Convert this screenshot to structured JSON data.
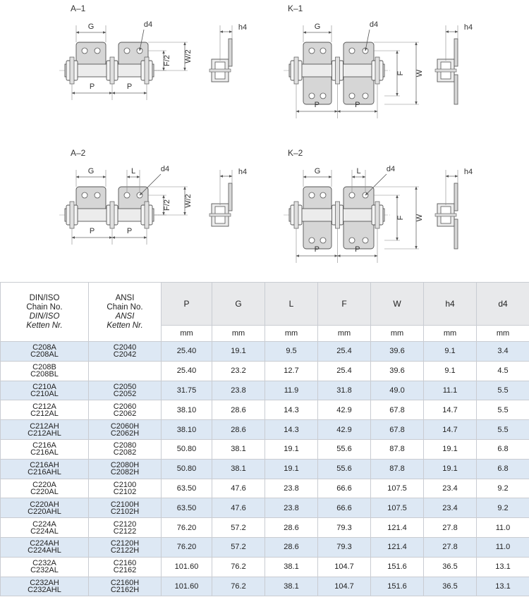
{
  "diagrams": [
    {
      "title": "A–1",
      "labels": [
        "G",
        "d4",
        "h4",
        "F/2",
        "W/2",
        "P",
        "P"
      ]
    },
    {
      "title": "K–1",
      "labels": [
        "G",
        "d4",
        "h4",
        "F",
        "W",
        "P",
        "P"
      ]
    },
    {
      "title": "A–2",
      "labels": [
        "G",
        "L",
        "d4",
        "h4",
        "F/2",
        "W/2",
        "P",
        "P"
      ]
    },
    {
      "title": "K–2",
      "labels": [
        "G",
        "L",
        "d4",
        "h4",
        "F",
        "W",
        "P",
        "P"
      ]
    }
  ],
  "table": {
    "header": {
      "din": {
        "lines": [
          "DIN/ISO",
          "Chain No."
        ],
        "italic_lines": [
          "DIN/ISO",
          "Ketten Nr."
        ]
      },
      "ansi": {
        "lines": [
          "ANSI",
          "Chain No."
        ],
        "italic_lines": [
          "ANSI",
          "Ketten Nr."
        ]
      },
      "dims": [
        "P",
        "G",
        "L",
        "F",
        "W",
        "h4",
        "d4"
      ],
      "units": [
        "mm",
        "mm",
        "mm",
        "mm",
        "mm",
        "mm",
        "mm"
      ]
    },
    "rows": [
      {
        "din": [
          "C208A",
          "C208AL"
        ],
        "ansi": [
          "C2040",
          "C2042"
        ],
        "values": [
          "25.40",
          "19.1",
          "9.5",
          "25.4",
          "39.6",
          "9.1",
          "3.4"
        ]
      },
      {
        "din": [
          "C208B",
          "C208BL"
        ],
        "ansi": [],
        "values": [
          "25.40",
          "23.2",
          "12.7",
          "25.4",
          "39.6",
          "9.1",
          "4.5"
        ]
      },
      {
        "din": [
          "C210A",
          "C210AL"
        ],
        "ansi": [
          "C2050",
          "C2052"
        ],
        "values": [
          "31.75",
          "23.8",
          "11.9",
          "31.8",
          "49.0",
          "11.1",
          "5.5"
        ]
      },
      {
        "din": [
          "C212A",
          "C212AL"
        ],
        "ansi": [
          "C2060",
          "C2062"
        ],
        "values": [
          "38.10",
          "28.6",
          "14.3",
          "42.9",
          "67.8",
          "14.7",
          "5.5"
        ]
      },
      {
        "din": [
          "C212AH",
          "C212AHL"
        ],
        "ansi": [
          "C2060H",
          "C2062H"
        ],
        "values": [
          "38.10",
          "28.6",
          "14.3",
          "42.9",
          "67.8",
          "14.7",
          "5.5"
        ]
      },
      {
        "din": [
          "C216A",
          "C216AL"
        ],
        "ansi": [
          "C2080",
          "C2082"
        ],
        "values": [
          "50.80",
          "38.1",
          "19.1",
          "55.6",
          "87.8",
          "19.1",
          "6.8"
        ]
      },
      {
        "din": [
          "C216AH",
          "C216AHL"
        ],
        "ansi": [
          "C2080H",
          "C2082H"
        ],
        "values": [
          "50.80",
          "38.1",
          "19.1",
          "55.6",
          "87.8",
          "19.1",
          "6.8"
        ]
      },
      {
        "din": [
          "C220A",
          "C220AL"
        ],
        "ansi": [
          "C2100",
          "C2102"
        ],
        "values": [
          "63.50",
          "47.6",
          "23.8",
          "66.6",
          "107.5",
          "23.4",
          "9.2"
        ]
      },
      {
        "din": [
          "C220AH",
          "C220AHL"
        ],
        "ansi": [
          "C2100H",
          "C2102H"
        ],
        "values": [
          "63.50",
          "47.6",
          "23.8",
          "66.6",
          "107.5",
          "23.4",
          "9.2"
        ]
      },
      {
        "din": [
          "C224A",
          "C224AL"
        ],
        "ansi": [
          "C2120",
          "C2122"
        ],
        "values": [
          "76.20",
          "57.2",
          "28.6",
          "79.3",
          "121.4",
          "27.8",
          "11.0"
        ]
      },
      {
        "din": [
          "C224AH",
          "C224AHL"
        ],
        "ansi": [
          "C2120H",
          "C2122H"
        ],
        "values": [
          "76.20",
          "57.2",
          "28.6",
          "79.3",
          "121.4",
          "27.8",
          "11.0"
        ]
      },
      {
        "din": [
          "C232A",
          "C232AL"
        ],
        "ansi": [
          "C2160",
          "C2162"
        ],
        "values": [
          "101.60",
          "76.2",
          "38.1",
          "104.7",
          "151.6",
          "36.5",
          "13.1"
        ]
      },
      {
        "din": [
          "C232AH",
          "C232AHL"
        ],
        "ansi": [
          "C2160H",
          "C2162H"
        ],
        "values": [
          "101.60",
          "76.2",
          "38.1",
          "104.7",
          "151.6",
          "36.5",
          "13.1"
        ]
      }
    ]
  }
}
